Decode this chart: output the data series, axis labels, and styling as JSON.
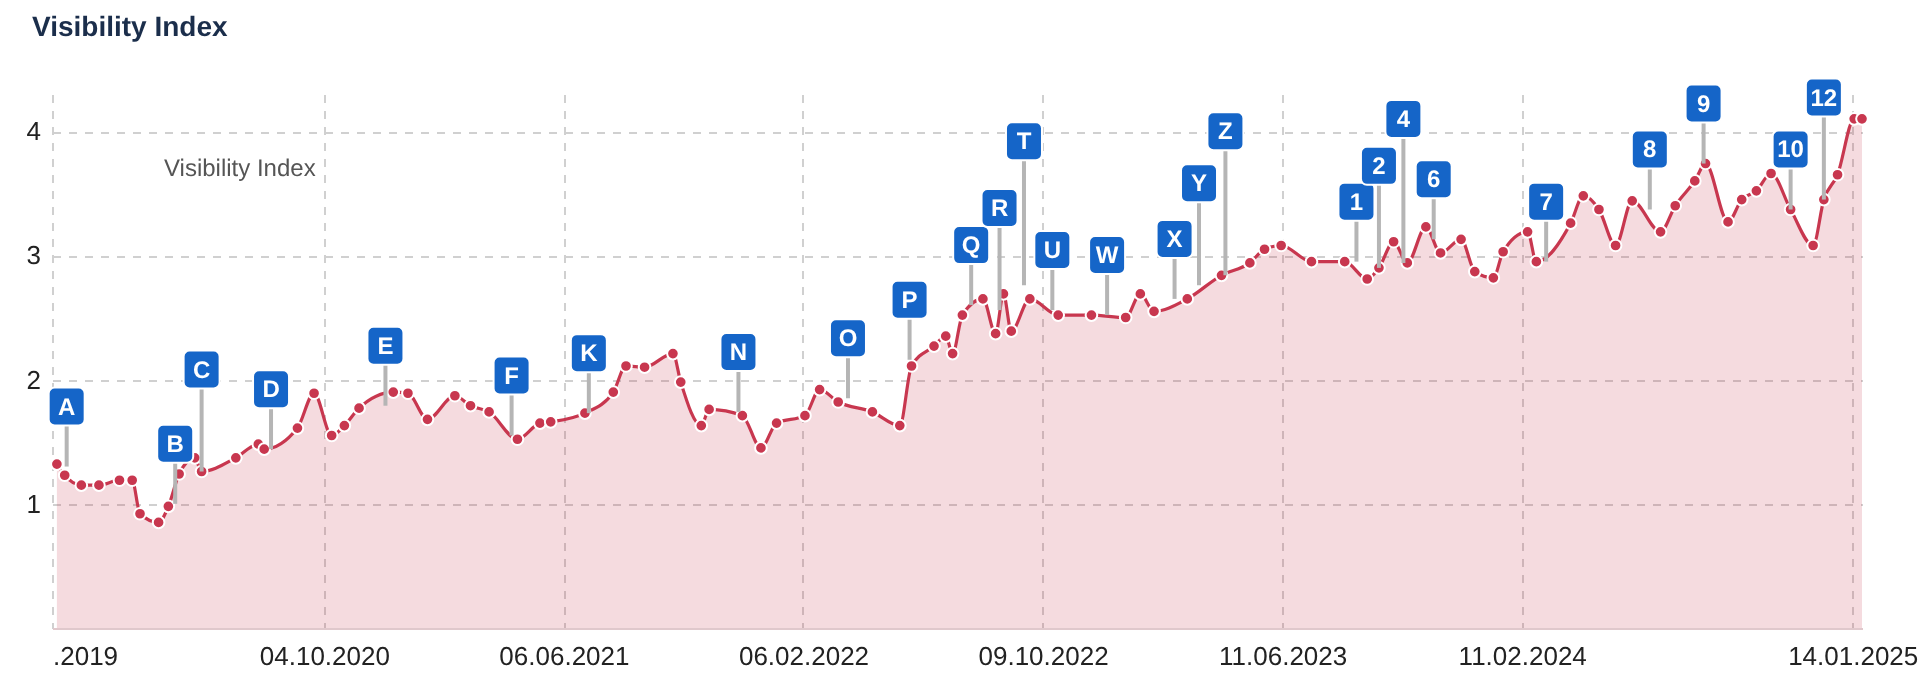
{
  "chart_data": {
    "type": "area",
    "title": "Visibility Index",
    "marker": "circle",
    "grid": true,
    "xlim": [
      "2019-12-31",
      "2025-01-24"
    ],
    "ylim": [
      0,
      4.3
    ],
    "yticks": [
      1,
      2,
      3,
      4
    ],
    "xticks": [
      {
        "value": "2019-12-31",
        "label": ".2019"
      },
      {
        "value": "2020-10-04",
        "label": "04.10.2020"
      },
      {
        "value": "2021-06-06",
        "label": "06.06.2021"
      },
      {
        "value": "2022-02-06",
        "label": "06.02.2022"
      },
      {
        "value": "2022-10-09",
        "label": "09.10.2022"
      },
      {
        "value": "2023-06-11",
        "label": "11.06.2023"
      },
      {
        "value": "2024-02-11",
        "label": "11.02.2024"
      },
      {
        "value": "2025-01-14",
        "label": "14.01.2025"
      }
    ],
    "x": [
      "2020-01-05",
      "2020-01-13",
      "2020-01-30",
      "2020-02-17",
      "2020-03-09",
      "2020-03-22",
      "2020-03-30",
      "2020-04-18",
      "2020-04-28",
      "2020-05-09",
      "2020-05-25",
      "2020-06-01",
      "2020-07-06",
      "2020-07-29",
      "2020-08-04",
      "2020-09-07",
      "2020-09-24",
      "2020-10-12",
      "2020-10-25",
      "2020-11-09",
      "2020-12-14",
      "2020-12-29",
      "2021-01-18",
      "2021-02-15",
      "2021-03-03",
      "2021-03-22",
      "2021-04-20",
      "2021-05-13",
      "2021-05-24",
      "2021-06-28",
      "2021-07-27",
      "2021-08-09",
      "2021-08-28",
      "2021-09-26",
      "2021-10-04",
      "2021-10-25",
      "2021-11-02",
      "2021-12-06",
      "2021-12-25",
      "2022-01-10",
      "2022-02-08",
      "2022-02-23",
      "2022-03-14",
      "2022-04-18",
      "2022-05-16",
      "2022-05-28",
      "2022-06-20",
      "2022-07-02",
      "2022-07-09",
      "2022-07-19",
      "2022-08-09",
      "2022-08-22",
      "2022-08-30",
      "2022-09-07",
      "2022-09-26",
      "2022-10-25",
      "2022-11-28",
      "2023-01-02",
      "2023-01-17",
      "2023-01-31",
      "2023-03-06",
      "2023-04-10",
      "2023-05-09",
      "2023-05-24",
      "2023-06-10",
      "2023-07-11",
      "2023-08-14",
      "2023-09-06",
      "2023-09-18",
      "2023-10-03",
      "2023-10-17",
      "2023-11-05",
      "2023-11-20",
      "2023-12-11",
      "2023-12-25",
      "2024-01-13",
      "2024-01-23",
      "2024-02-17",
      "2024-02-26",
      "2024-04-01",
      "2024-04-14",
      "2024-04-30",
      "2024-05-17",
      "2024-06-03",
      "2024-07-02",
      "2024-07-17",
      "2024-08-06",
      "2024-08-17",
      "2024-09-09",
      "2024-09-23",
      "2024-10-08",
      "2024-10-23",
      "2024-11-12",
      "2024-12-05",
      "2024-12-16",
      "2024-12-30",
      "2025-01-16",
      "2025-01-24"
    ],
    "series": [
      {
        "color": "#c8374f",
        "values": [
          1.32,
          1.23,
          1.15,
          1.15,
          1.19,
          1.19,
          0.92,
          0.85,
          0.98,
          1.24,
          1.37,
          1.26,
          1.37,
          1.48,
          1.44,
          1.61,
          1.89,
          1.55,
          1.63,
          1.77,
          1.9,
          1.89,
          1.68,
          1.87,
          1.79,
          1.74,
          1.52,
          1.65,
          1.66,
          1.73,
          1.9,
          2.11,
          2.1,
          2.21,
          1.98,
          1.63,
          1.76,
          1.71,
          1.45,
          1.65,
          1.71,
          1.92,
          1.82,
          1.74,
          1.63,
          2.11,
          2.27,
          2.35,
          2.21,
          2.52,
          2.65,
          2.37,
          2.69,
          2.39,
          2.65,
          2.52,
          2.52,
          2.5,
          2.69,
          2.55,
          2.65,
          2.84,
          2.94,
          3.05,
          3.08,
          2.95,
          2.95,
          2.81,
          2.9,
          3.11,
          2.94,
          3.23,
          3.02,
          3.13,
          2.87,
          2.82,
          3.03,
          3.19,
          2.95,
          3.26,
          3.48,
          3.37,
          3.08,
          3.44,
          3.19,
          3.4,
          3.6,
          3.74,
          3.27,
          3.45,
          3.52,
          3.66,
          3.37,
          3.08,
          3.45,
          3.65,
          4.1,
          4.1
        ]
      }
    ],
    "annotations": [
      "Visibility Index",
      {
        "text": "A",
        "x": "2020-01-15",
        "y": 1.3
      },
      {
        "text": "B",
        "x": "2020-05-05",
        "y": 1.0
      },
      {
        "text": "C",
        "x": "2020-06-01",
        "y": 1.26
      },
      {
        "text": "D",
        "x": "2020-08-11",
        "y": 1.44
      },
      {
        "text": "E",
        "x": "2020-12-06",
        "y": 1.79
      },
      {
        "text": "F",
        "x": "2021-04-14",
        "y": 1.55
      },
      {
        "text": "K",
        "x": "2021-07-02",
        "y": 1.73
      },
      {
        "text": "N",
        "x": "2021-12-02",
        "y": 1.74
      },
      {
        "text": "O",
        "x": "2022-03-24",
        "y": 1.85
      },
      {
        "text": "P",
        "x": "2022-05-26",
        "y": 2.16
      },
      {
        "text": "Q",
        "x": "2022-07-28",
        "y": 2.6
      },
      {
        "text": "R",
        "x": "2022-08-26",
        "y": 2.56
      },
      {
        "text": "T",
        "x": "2022-09-20",
        "y": 2.76
      },
      {
        "text": "U",
        "x": "2022-10-19",
        "y": 2.56
      },
      {
        "text": "W",
        "x": "2022-12-14",
        "y": 2.52
      },
      {
        "text": "X",
        "x": "2023-02-21",
        "y": 2.65
      },
      {
        "text": "Y",
        "x": "2023-03-18",
        "y": 2.76
      },
      {
        "text": "Z",
        "x": "2023-04-14",
        "y": 2.84
      },
      {
        "text": "1",
        "x": "2023-08-26",
        "y": 2.95
      },
      {
        "text": "2",
        "x": "2023-09-18",
        "y": 2.9
      },
      {
        "text": "4",
        "x": "2023-10-13",
        "y": 2.94
      },
      {
        "text": "6",
        "x": "2023-11-13",
        "y": 3.13
      },
      {
        "text": "7",
        "x": "2024-03-07",
        "y": 2.95
      },
      {
        "text": "8",
        "x": "2024-06-21",
        "y": 3.37
      },
      {
        "text": "9",
        "x": "2024-08-15",
        "y": 3.74
      },
      {
        "text": "10",
        "x": "2024-11-12",
        "y": 3.37
      },
      {
        "text": "12",
        "x": "2024-12-16",
        "y": 3.45
      }
    ]
  }
}
